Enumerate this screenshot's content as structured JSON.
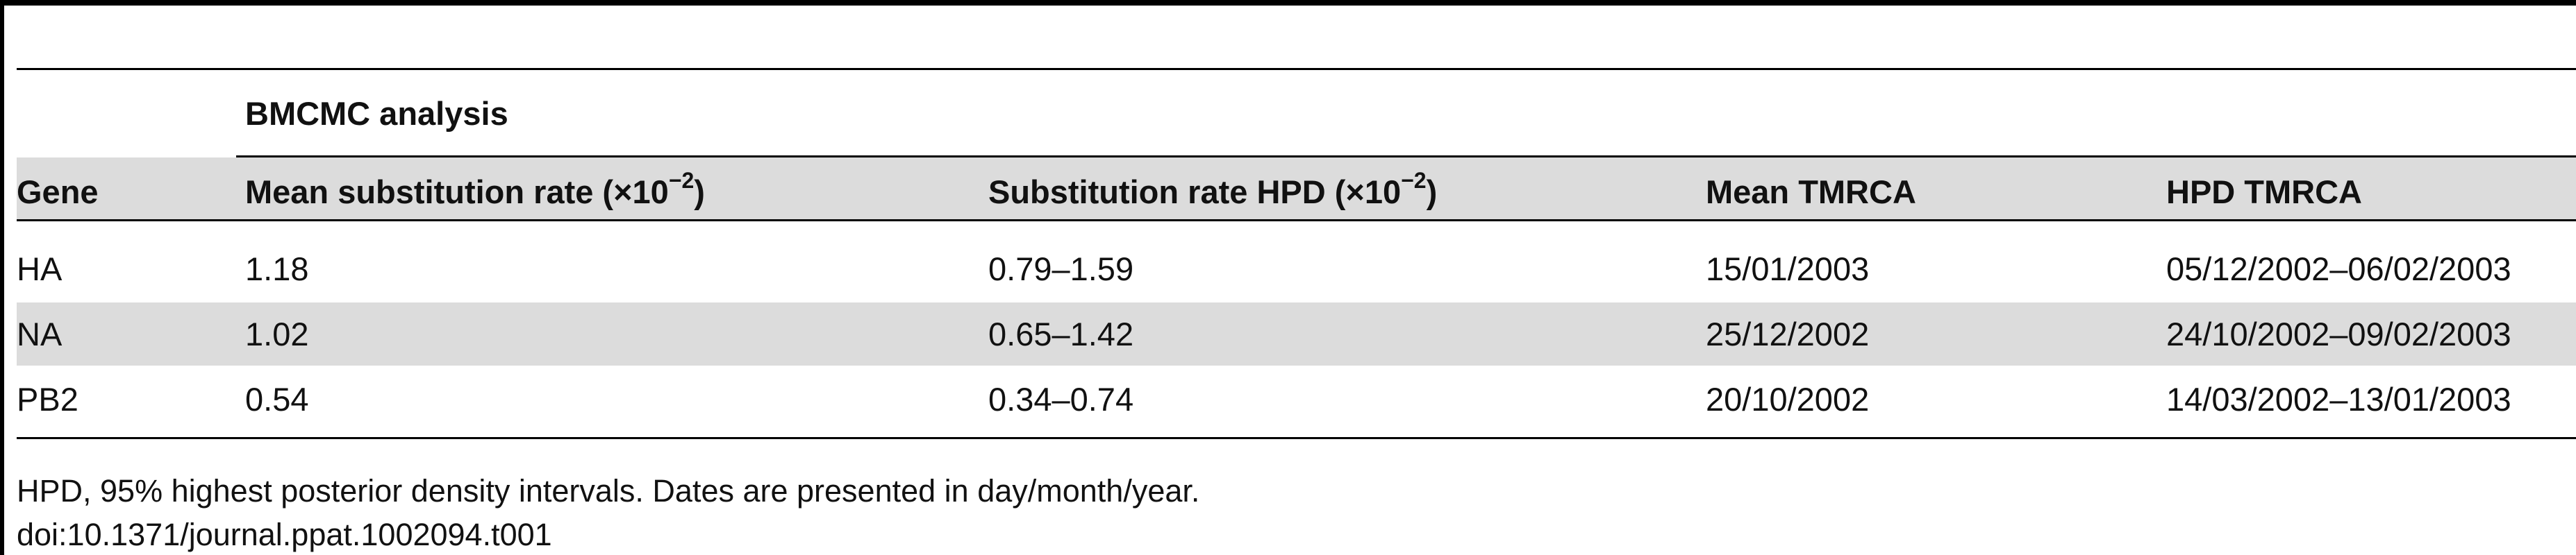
{
  "table": {
    "group_header": "BMCMC analysis",
    "columns": [
      {
        "label": "Gene"
      },
      {
        "label": "Mean substitution rate (×10",
        "exponent": "−2",
        "suffix": ")"
      },
      {
        "label": "Substitution rate HPD (×10",
        "exponent": "−2",
        "suffix": ")"
      },
      {
        "label": "Mean TMRCA"
      },
      {
        "label": "HPD TMRCA"
      }
    ],
    "rows": [
      [
        "HA",
        "1.18",
        "0.79–1.59",
        "15/01/2003",
        "05/12/2002–06/02/2003"
      ],
      [
        "NA",
        "1.02",
        "0.65–1.42",
        "25/12/2002",
        "24/10/2002–09/02/2003"
      ],
      [
        "PB2",
        "0.54",
        "0.34–0.74",
        "20/10/2002",
        "14/03/2002–13/01/2003"
      ]
    ]
  },
  "footnote": "HPD, 95% highest posterior density intervals. Dates are presented in day/month/year.",
  "doi": "doi:10.1371/journal.ppat.1002094.t001",
  "colors": {
    "rule": "#000000",
    "band": "#dcdcdc",
    "text": "#111111"
  }
}
